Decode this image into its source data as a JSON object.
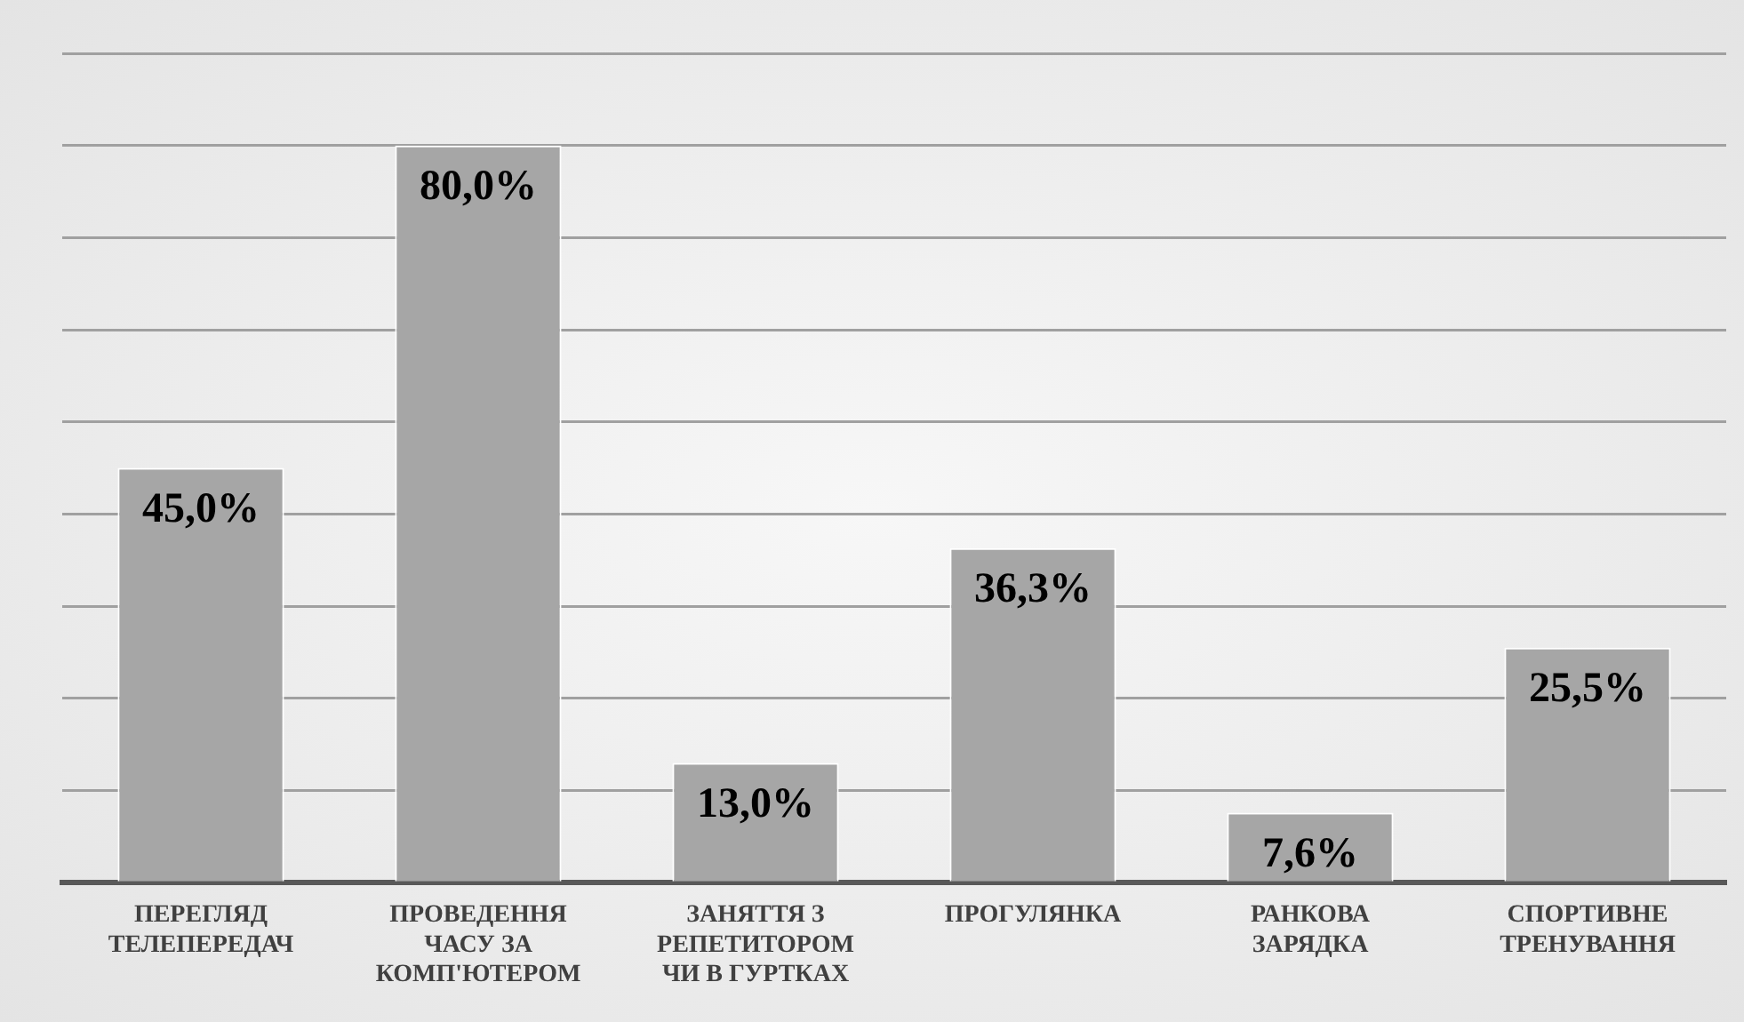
{
  "chart_data": {
    "type": "bar",
    "categories": [
      "ПЕРЕГЛЯД ТЕЛЕПЕРЕДАЧ",
      "ПРОВЕДЕННЯ ЧАСУ ЗА КОМП'ЮТЕРОМ",
      "ЗАНЯТТЯ З РЕПЕТИТОРОМ ЧИ В ГУРТКАХ",
      "ПРОГУЛЯНКА",
      "РАНКОВА ЗАРЯДКА",
      "СПОРТИВНЕ ТРЕНУВАННЯ"
    ],
    "values": [
      45.0,
      80.0,
      13.0,
      36.3,
      7.6,
      25.5
    ],
    "value_labels": [
      "45,0%",
      "80,0%",
      "13,0%",
      "36,3%",
      "7,6%",
      "25,5%"
    ],
    "color": "#a6a6a6",
    "ylim": [
      0,
      90
    ],
    "grid": "y",
    "legend": false,
    "tick_labels": "x"
  }
}
